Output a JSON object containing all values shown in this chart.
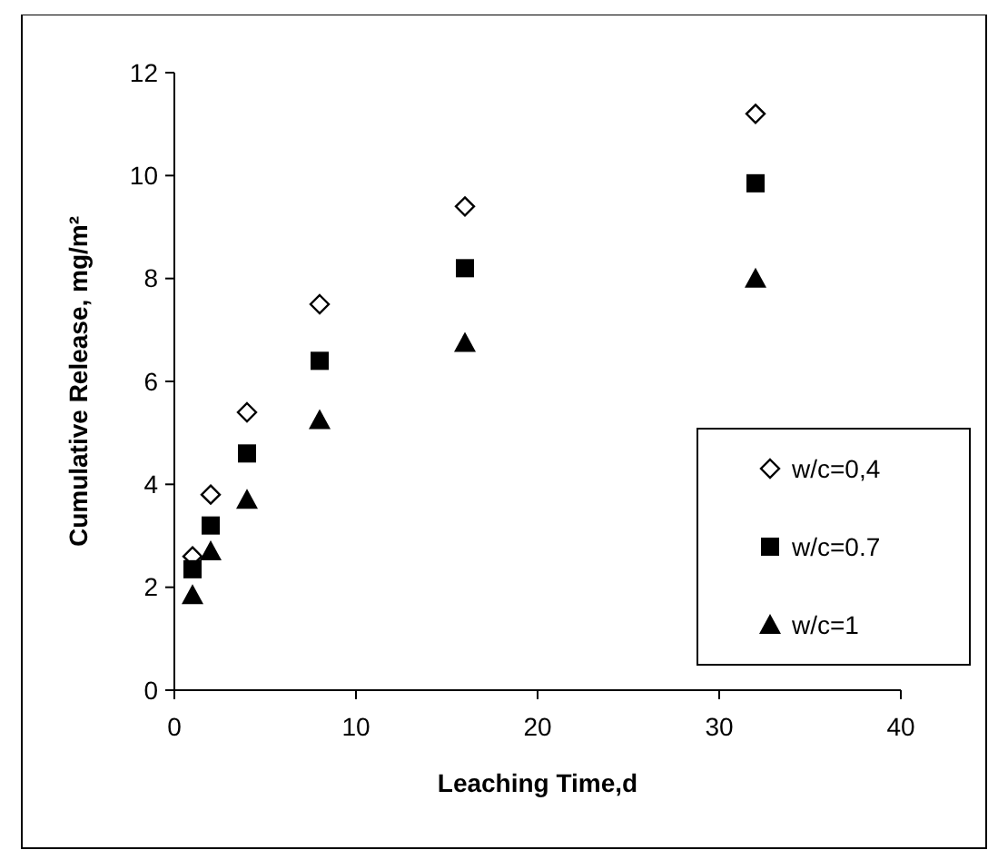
{
  "chart_data": {
    "type": "scatter",
    "xlabel": "Leaching Time,d",
    "ylabel": "Cumulative Release, mg/m²",
    "x": [
      1,
      2,
      4,
      8,
      16,
      32
    ],
    "xlim": [
      0,
      40
    ],
    "xticks": [
      0,
      10,
      20,
      30,
      40
    ],
    "ylim": [
      0,
      12
    ],
    "yticks": [
      0,
      2,
      4,
      6,
      8,
      10,
      12
    ],
    "grid": false,
    "legend": "right",
    "series": [
      {
        "name": "w/c=0,4",
        "color": "#000000",
        "marker": "diamond",
        "values": [
          2.6,
          3.8,
          5.4,
          7.5,
          9.4,
          11.2
        ]
      },
      {
        "name": "w/c=0.7",
        "color": "#000000",
        "marker": "square",
        "values": [
          2.35,
          3.2,
          4.6,
          6.4,
          8.2,
          9.85
        ]
      },
      {
        "name": "w/c=1",
        "color": "#000000",
        "marker": "triangle",
        "values": [
          1.85,
          2.7,
          3.7,
          5.25,
          6.75,
          8.0
        ]
      }
    ]
  }
}
